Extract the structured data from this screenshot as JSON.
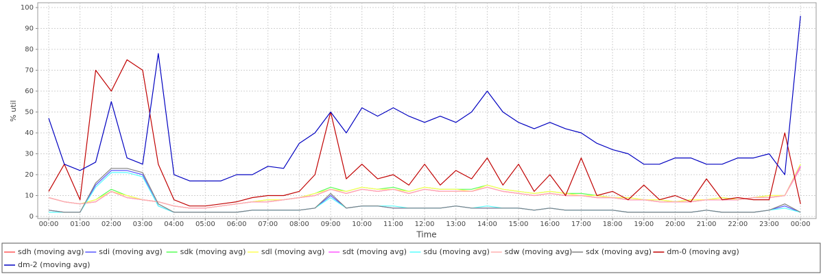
{
  "chart_data": {
    "type": "line",
    "x_label": "Time",
    "y_label": "% util",
    "x": [
      0,
      0.5,
      1,
      1.5,
      2,
      2.5,
      3,
      3.5,
      4,
      4.5,
      5,
      5.5,
      6,
      6.5,
      7,
      7.5,
      8,
      8.5,
      9,
      9.5,
      10,
      10.5,
      11,
      11.5,
      12,
      12.5,
      13,
      13.5,
      14,
      14.5,
      15,
      15.5,
      16,
      16.5,
      17,
      17.5,
      18,
      18.5,
      19,
      19.5,
      20,
      20.5,
      21,
      21.5,
      22,
      22.5,
      23,
      23.5,
      24
    ],
    "xlim": [
      -0.35,
      24.5
    ],
    "xticks": [
      {
        "value": 0,
        "label": "00:00"
      },
      {
        "value": 1,
        "label": "01:00"
      },
      {
        "value": 2,
        "label": "02:00"
      },
      {
        "value": 3,
        "label": "03:00"
      },
      {
        "value": 4,
        "label": "04:00"
      },
      {
        "value": 5,
        "label": "05:00"
      },
      {
        "value": 6,
        "label": "06:00"
      },
      {
        "value": 7,
        "label": "07:00"
      },
      {
        "value": 8,
        "label": "08:00"
      },
      {
        "value": 9,
        "label": "09:00"
      },
      {
        "value": 10,
        "label": "10:00"
      },
      {
        "value": 11,
        "label": "11:00"
      },
      {
        "value": 12,
        "label": "12:00"
      },
      {
        "value": 13,
        "label": "13:00"
      },
      {
        "value": 14,
        "label": "14:00"
      },
      {
        "value": 15,
        "label": "15:00"
      },
      {
        "value": 16,
        "label": "16:00"
      },
      {
        "value": 17,
        "label": "17:00"
      },
      {
        "value": 18,
        "label": "18:00"
      },
      {
        "value": 19,
        "label": "19:00"
      },
      {
        "value": 20,
        "label": "20:00"
      },
      {
        "value": 21,
        "label": "21:00"
      },
      {
        "value": 22,
        "label": "22:00"
      },
      {
        "value": 23,
        "label": "23:00"
      },
      {
        "value": 24,
        "label": "00:00"
      }
    ],
    "ylim": [
      -1,
      101
    ],
    "yticks": [
      0,
      10,
      20,
      30,
      40,
      50,
      60,
      70,
      80,
      90,
      100
    ],
    "grid": true,
    "legend": "bottom",
    "series": [
      {
        "name": "sdh (moving avg)",
        "color": "#ff5555",
        "values": [
          9,
          7,
          6,
          7,
          12,
          9,
          8,
          7,
          5,
          4,
          4,
          5,
          6,
          7,
          7,
          8,
          9,
          10,
          13,
          11,
          13,
          12,
          13,
          11,
          13,
          12,
          12,
          12,
          14,
          12,
          11,
          10,
          11,
          10,
          10,
          9,
          9,
          8,
          8,
          7,
          7,
          7,
          8,
          8,
          8,
          9,
          9,
          10,
          24
        ]
      },
      {
        "name": "sdi (moving avg)",
        "color": "#5555ff",
        "values": [
          3,
          2,
          2,
          15,
          22,
          22,
          20,
          5,
          2,
          2,
          2,
          2,
          2,
          3,
          3,
          3,
          3,
          4,
          10,
          4,
          5,
          5,
          4,
          4,
          4,
          4,
          5,
          4,
          4,
          4,
          4,
          3,
          4,
          3,
          3,
          3,
          3,
          2,
          2,
          2,
          2,
          2,
          3,
          2,
          2,
          2,
          3,
          5,
          2
        ]
      },
      {
        "name": "sdk (moving avg)",
        "color": "#55ff55",
        "values": [
          9,
          7,
          6,
          8,
          13,
          10,
          8,
          7,
          5,
          4,
          4,
          5,
          6,
          7,
          8,
          8,
          9,
          11,
          14,
          12,
          14,
          13,
          14,
          12,
          14,
          13,
          13,
          13,
          15,
          13,
          12,
          11,
          12,
          11,
          11,
          10,
          9,
          9,
          8,
          8,
          7,
          8,
          8,
          9,
          8,
          9,
          10,
          10,
          25
        ]
      },
      {
        "name": "sdl (moving avg)",
        "color": "#ffff55",
        "values": [
          9,
          7,
          6,
          8,
          12,
          10,
          8,
          7,
          5,
          4,
          4,
          5,
          6,
          7,
          8,
          8,
          9,
          11,
          13,
          12,
          14,
          13,
          13,
          12,
          14,
          13,
          13,
          12,
          15,
          13,
          12,
          11,
          12,
          11,
          10,
          10,
          9,
          9,
          8,
          8,
          7,
          8,
          8,
          9,
          8,
          9,
          10,
          10,
          25
        ]
      },
      {
        "name": "sdt (moving avg)",
        "color": "#ff55ff",
        "values": [
          9,
          7,
          6,
          7,
          12,
          9,
          8,
          7,
          5,
          4,
          4,
          5,
          6,
          7,
          7,
          8,
          9,
          10,
          13,
          11,
          13,
          12,
          13,
          11,
          13,
          12,
          12,
          12,
          14,
          12,
          11,
          10,
          11,
          10,
          10,
          9,
          9,
          8,
          8,
          7,
          7,
          7,
          8,
          8,
          8,
          9,
          9,
          10,
          24
        ]
      },
      {
        "name": "sdu (moving avg)",
        "color": "#55ffff",
        "values": [
          2,
          2,
          2,
          14,
          21,
          21,
          19,
          5,
          2,
          2,
          2,
          2,
          2,
          3,
          3,
          3,
          3,
          4,
          9,
          4,
          5,
          5,
          5,
          4,
          4,
          4,
          5,
          4,
          5,
          4,
          4,
          3,
          4,
          3,
          3,
          3,
          3,
          2,
          2,
          2,
          2,
          2,
          3,
          2,
          2,
          2,
          3,
          4,
          2
        ]
      },
      {
        "name": "sdw (moving avg)",
        "color": "#ffafaf",
        "values": [
          9,
          7,
          6,
          7,
          12,
          9,
          8,
          7,
          5,
          4,
          4,
          5,
          6,
          7,
          7,
          8,
          9,
          10,
          13,
          11,
          13,
          12,
          13,
          11,
          13,
          12,
          12,
          12,
          14,
          12,
          11,
          10,
          11,
          10,
          10,
          9,
          9,
          8,
          8,
          7,
          7,
          7,
          8,
          8,
          8,
          9,
          9,
          10,
          23
        ]
      },
      {
        "name": "sdx (moving avg)",
        "color": "#808080",
        "values": [
          3,
          2,
          2,
          16,
          23,
          23,
          21,
          6,
          2,
          2,
          2,
          2,
          2,
          3,
          3,
          3,
          3,
          4,
          11,
          4,
          5,
          5,
          4,
          4,
          4,
          4,
          5,
          4,
          4,
          4,
          4,
          3,
          4,
          3,
          3,
          3,
          3,
          2,
          2,
          2,
          2,
          2,
          3,
          2,
          2,
          2,
          3,
          6,
          2
        ]
      },
      {
        "name": "dm-0 (moving avg)",
        "color": "#c00000",
        "values": [
          12,
          25,
          8,
          70,
          60,
          75,
          70,
          25,
          8,
          5,
          5,
          6,
          7,
          9,
          10,
          10,
          12,
          20,
          50,
          18,
          25,
          18,
          20,
          15,
          25,
          15,
          22,
          18,
          28,
          15,
          25,
          12,
          20,
          10,
          28,
          10,
          12,
          8,
          15,
          8,
          10,
          7,
          18,
          8,
          9,
          8,
          8,
          40,
          6
        ]
      },
      {
        "name": "dm-2 (moving avg)",
        "color": "#0000c0",
        "values": [
          47,
          25,
          22,
          26,
          55,
          28,
          25,
          78,
          20,
          17,
          17,
          17,
          20,
          20,
          24,
          23,
          35,
          40,
          50,
          40,
          52,
          48,
          52,
          48,
          45,
          48,
          45,
          50,
          60,
          50,
          45,
          42,
          45,
          42,
          40,
          35,
          32,
          30,
          25,
          25,
          28,
          28,
          25,
          25,
          28,
          28,
          30,
          20,
          96
        ]
      }
    ]
  }
}
